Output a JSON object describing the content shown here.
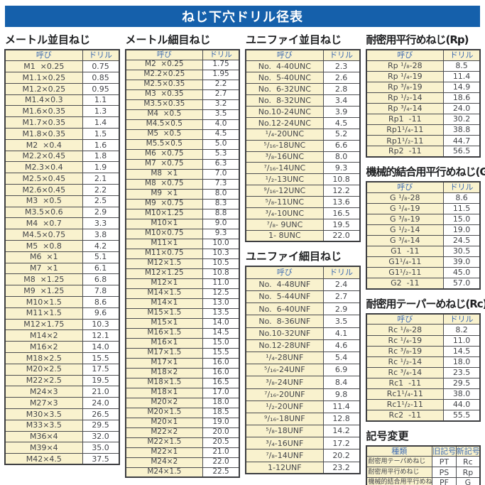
{
  "title": "ねじ下穴ドリル径表",
  "col_headers": {
    "name": "呼び",
    "drill": "ドリル"
  },
  "colors": {
    "title_bar_bg": "#1560ab",
    "title_text": "#ffffff",
    "cream": "#f9f2ce",
    "header_text": "#3e6bb2",
    "cell_text": "#43454a",
    "border": "#4b4c50",
    "section_title_text": "#1f2022"
  },
  "tables": {
    "metric_coarse": {
      "title": "メートル並目ねじ",
      "rows": [
        [
          "M1  ×0.25",
          "0.75"
        ],
        [
          "M1.1×0.25",
          "0.85"
        ],
        [
          "M1.2×0.25",
          "0.95"
        ],
        [
          "M1.4×0.3",
          "1.1"
        ],
        [
          "M1.6×0.35",
          "1.3"
        ],
        [
          "M1.7×0.35",
          "1.4"
        ],
        [
          "M1.8×0.35",
          "1.5"
        ],
        [
          "M2  ×0.4",
          "1.6"
        ],
        [
          "M2.2×0.45",
          "1.8"
        ],
        [
          "M2.3×0.4",
          "1.9"
        ],
        [
          "M2.5×0.45",
          "2.1"
        ],
        [
          "M2.6×0.45",
          "2.2"
        ],
        [
          "M3  ×0.5",
          "2.5"
        ],
        [
          "M3.5×0.6",
          "2.9"
        ],
        [
          "M4  ×0.7",
          "3.3"
        ],
        [
          "M4.5×0.75",
          "3.8"
        ],
        [
          "M5  ×0.8",
          "4.2"
        ],
        [
          "M6  ×1",
          "5.1"
        ],
        [
          "M7  ×1",
          "6.1"
        ],
        [
          "M8  ×1.25",
          "6.8"
        ],
        [
          "M9  ×1.25",
          "7.8"
        ],
        [
          "M10×1.5",
          "8.6"
        ],
        [
          "M11×1.5",
          "9.6"
        ],
        [
          "M12×1.75",
          "10.3"
        ],
        [
          "M14×2",
          "12.1"
        ],
        [
          "M16×2",
          "14.0"
        ],
        [
          "M18×2.5",
          "15.5"
        ],
        [
          "M20×2.5",
          "17.5"
        ],
        [
          "M22×2.5",
          "19.5"
        ],
        [
          "M24×3",
          "21.0"
        ],
        [
          "M27×3",
          "24.0"
        ],
        [
          "M30×3.5",
          "26.5"
        ],
        [
          "M33×3.5",
          "29.5"
        ],
        [
          "M36×4",
          "32.0"
        ],
        [
          "M39×4",
          "35.0"
        ],
        [
          "M42×4.5",
          "37.5"
        ]
      ]
    },
    "metric_fine": {
      "title": "メートル細目ねじ",
      "rows": [
        [
          "M2  ×0.25",
          "1.75"
        ],
        [
          "M2.2×0.25",
          "1.95"
        ],
        [
          "M2.5×0.35",
          "2.2"
        ],
        [
          "M3  ×0.35",
          "2.7"
        ],
        [
          "M3.5×0.35",
          "3.2"
        ],
        [
          "M4  ×0.5",
          "3.5"
        ],
        [
          "M4.5×0.5",
          "4.0"
        ],
        [
          "M5  ×0.5",
          "4.5"
        ],
        [
          "M5.5×0.5",
          "5.0"
        ],
        [
          "M6  ×0.75",
          "5.3"
        ],
        [
          "M7  ×0.75",
          "6.3"
        ],
        [
          "M8  ×1",
          "7.0"
        ],
        [
          "M8  ×0.75",
          "7.3"
        ],
        [
          "M9  ×1",
          "8.0"
        ],
        [
          "M9  ×0.75",
          "8.3"
        ],
        [
          "M10×1.25",
          "8.8"
        ],
        [
          "M10×1",
          "9.0"
        ],
        [
          "M10×0.75",
          "9.3"
        ],
        [
          "M11×1",
          "10.0"
        ],
        [
          "M11×0.75",
          "10.3"
        ],
        [
          "M12×1.5",
          "10.5"
        ],
        [
          "M12×1.25",
          "10.8"
        ],
        [
          "M12×1",
          "11.0"
        ],
        [
          "M14×1.5",
          "12.5"
        ],
        [
          "M14×1",
          "13.0"
        ],
        [
          "M15×1.5",
          "13.5"
        ],
        [
          "M15×1",
          "14.0"
        ],
        [
          "M16×1.5",
          "14.5"
        ],
        [
          "M16×1",
          "15.0"
        ],
        [
          "M17×1.5",
          "15.5"
        ],
        [
          "M17×1",
          "16.0"
        ],
        [
          "M18×2",
          "16.0"
        ],
        [
          "M18×1.5",
          "16.5"
        ],
        [
          "M18×1",
          "17.0"
        ],
        [
          "M20×2",
          "18.0"
        ],
        [
          "M20×1.5",
          "18.5"
        ],
        [
          "M20×1",
          "19.0"
        ],
        [
          "M22×2",
          "20.0"
        ],
        [
          "M22×1.5",
          "20.5"
        ],
        [
          "M22×1",
          "21.0"
        ],
        [
          "M24×2",
          "22.0"
        ],
        [
          "M24×1.5",
          "22.5"
        ]
      ]
    },
    "unified_coarse": {
      "title": "ユニファイ並目ねじ",
      "rows": [
        [
          "No.  4-40UNC",
          "2.3"
        ],
        [
          "No.  5-40UNC",
          "2.6"
        ],
        [
          "No.  6-32UNC",
          "2.8"
        ],
        [
          "No.  8-32UNC",
          "3.4"
        ],
        [
          "No.10-24UNC",
          "3.9"
        ],
        [
          "No.12-24UNC",
          "4.5"
        ],
        [
          "¹/₄-20UNC",
          "5.2"
        ],
        [
          "⁵/₁₆-18UNC",
          "6.6"
        ],
        [
          "³/₈-16UNC",
          "8.0"
        ],
        [
          "⁷/₁₆-14UNC",
          "9.3"
        ],
        [
          "¹/₂-13UNC",
          "10.8"
        ],
        [
          "⁹/₁₆-12UNC",
          "12.2"
        ],
        [
          "⁵/₈-11UNC",
          "13.6"
        ],
        [
          "³/₄-10UNC",
          "16.5"
        ],
        [
          "⁷/₈- 9UNC",
          "19.5"
        ],
        [
          "1- 8UNC",
          "22.0"
        ]
      ]
    },
    "unified_fine": {
      "title": "ユニファイ細目ねじ",
      "rows": [
        [
          "No.  4-48UNF",
          "2.4"
        ],
        [
          "No.  5-44UNF",
          "2.7"
        ],
        [
          "No.  6-40UNF",
          "2.9"
        ],
        [
          "No.  8-36UNF",
          "3.5"
        ],
        [
          "No.10-32UNF",
          "4.1"
        ],
        [
          "No.12-28UNF",
          "4.6"
        ],
        [
          "¹/₄-28UNF",
          "5.4"
        ],
        [
          "⁵/₁₆-24UNF",
          "6.9"
        ],
        [
          "³/₈-24UNF",
          "8.4"
        ],
        [
          "⁷/₁₆-20UNF",
          "9.8"
        ],
        [
          "¹/₂-20UNF",
          "11.4"
        ],
        [
          "⁹/₁₆-18UNF",
          "12.8"
        ],
        [
          "⁵/₈-18UNF",
          "14.2"
        ],
        [
          "³/₄-16UNF",
          "17.2"
        ],
        [
          "⁷/₈-14UNF",
          "20.2"
        ],
        [
          "1-12UNF",
          "23.2"
        ]
      ]
    },
    "rp": {
      "title": "耐密用平行めねじ(Rp)",
      "rows": [
        [
          "Rp ¹/₈-28",
          "8.5"
        ],
        [
          "Rp ¹/₄-19",
          "11.4"
        ],
        [
          "Rp ³/₈-19",
          "14.9"
        ],
        [
          "Rp ¹/₂-14",
          "18.6"
        ],
        [
          "Rp ³/₄-14",
          "24.0"
        ],
        [
          "Rp1  -11",
          "30.2"
        ],
        [
          "Rp1¹/₄-11",
          "38.8"
        ],
        [
          "Rp1¹/₂-11",
          "44.7"
        ],
        [
          "Rp2  -11",
          "56.5"
        ]
      ]
    },
    "g": {
      "title": "機械的結合用平行めねじ(G)",
      "rows": [
        [
          "G ¹/₈-28",
          "8.6"
        ],
        [
          "G ¹/₄-19",
          "11.5"
        ],
        [
          "G ³/₈-19",
          "15.0"
        ],
        [
          "G ¹/₂-14",
          "19.0"
        ],
        [
          "G ³/₄-14",
          "24.5"
        ],
        [
          "G1  -11",
          "30.5"
        ],
        [
          "G1¹/₄-11",
          "39.0"
        ],
        [
          "G1¹/₂-11",
          "45.0"
        ],
        [
          "G2  -11",
          "57.0"
        ]
      ]
    },
    "rc": {
      "title": "耐密用テーパーめねじ(Rc)",
      "rows": [
        [
          "Rc ¹/₈-28",
          "8.2"
        ],
        [
          "Rc ¹/₄-19",
          "11.0"
        ],
        [
          "Rc ³/₈-19",
          "14.5"
        ],
        [
          "Rc ¹/₂-14",
          "18.0"
        ],
        [
          "Rc ³/₄-14",
          "23.5"
        ],
        [
          "Rc1  -11",
          "29.5"
        ],
        [
          "Rc1¹/₄-11",
          "38.0"
        ],
        [
          "Rc1¹/₂-11",
          "44.0"
        ],
        [
          "Rc2  -11",
          "55.5"
        ]
      ]
    }
  },
  "symbol_change": {
    "title": "記号変更",
    "headers": [
      "種類",
      "旧記号",
      "新記号"
    ],
    "rows": [
      [
        "耐密用テーパめねじ",
        "PT",
        "Rc"
      ],
      [
        "耐密用平行めねじ",
        "PS",
        "Rp"
      ],
      [
        "機械的結合用平行めねじ",
        "PF",
        "G"
      ]
    ]
  }
}
